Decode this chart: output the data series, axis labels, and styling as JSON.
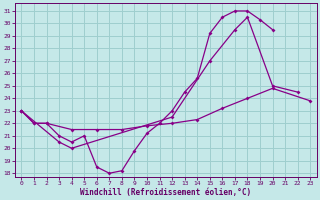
{
  "xlabel": "Windchill (Refroidissement éolien,°C)",
  "bg_color": "#c5e8e8",
  "grid_color": "#9ecece",
  "line_color": "#880088",
  "tick_color": "#660066",
  "xlim": [
    -0.5,
    23.5
  ],
  "ylim": [
    17.7,
    31.6
  ],
  "xticks": [
    0,
    1,
    2,
    3,
    4,
    5,
    6,
    7,
    8,
    9,
    10,
    11,
    12,
    13,
    14,
    15,
    16,
    17,
    18,
    19,
    20,
    21,
    22,
    23
  ],
  "yticks": [
    18,
    19,
    20,
    21,
    22,
    23,
    24,
    25,
    26,
    27,
    28,
    29,
    30,
    31
  ],
  "line1_x": [
    0,
    1,
    2,
    3,
    4,
    5,
    6,
    7,
    8,
    9,
    10,
    11,
    12,
    13,
    14,
    15,
    16,
    17,
    18,
    19,
    20
  ],
  "line1_y": [
    23,
    22,
    22,
    21,
    20.5,
    21,
    18.5,
    18,
    18.2,
    19.8,
    21.2,
    22,
    23,
    24.5,
    25.6,
    29.2,
    30.5,
    31,
    31,
    30.3,
    29.5
  ],
  "line2_x": [
    0,
    3,
    4,
    12,
    15,
    17,
    18,
    20,
    22
  ],
  "line2_y": [
    23,
    20.5,
    20,
    22.5,
    27,
    29.5,
    30.5,
    25,
    24.5
  ],
  "line3_x": [
    0,
    1,
    2,
    4,
    6,
    8,
    10,
    12,
    14,
    16,
    18,
    20,
    23
  ],
  "line3_y": [
    23,
    22,
    22,
    21.5,
    21.5,
    21.5,
    21.8,
    22.0,
    22.3,
    23.2,
    24.0,
    24.8,
    23.8
  ]
}
